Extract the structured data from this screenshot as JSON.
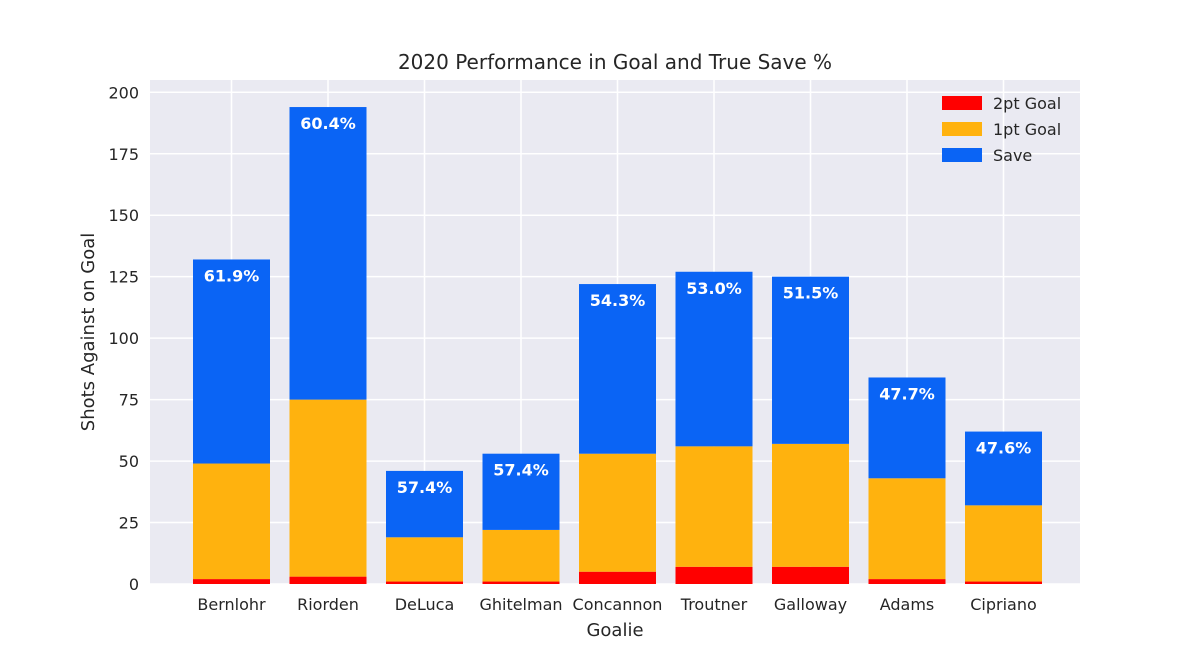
{
  "chart_data": {
    "type": "bar",
    "stacked": true,
    "title": "2020 Performance in Goal and True Save %",
    "xlabel": "Goalie",
    "ylabel": "Shots Against on Goal",
    "ylim": [
      0,
      205
    ],
    "yticks": [
      0,
      25,
      50,
      75,
      100,
      125,
      150,
      175,
      200
    ],
    "grid": true,
    "legend_position": "top-right",
    "categories": [
      "Bernlohr",
      "Riorden",
      "DeLuca",
      "Ghitelman",
      "Concannon",
      "Troutner",
      "Galloway",
      "Adams",
      "Cipriano"
    ],
    "highlighted_categories": [
      "Ghitelman",
      "Cipriano"
    ],
    "series": [
      {
        "name": "2pt Goal",
        "color": "#ff0000",
        "values": [
          2,
          3,
          1,
          1,
          5,
          7,
          7,
          2,
          1
        ]
      },
      {
        "name": "1pt Goal",
        "color": "#ffb20e",
        "values": [
          47,
          72,
          18,
          21,
          48,
          49,
          50,
          41,
          31
        ]
      },
      {
        "name": "Save",
        "color": "#0a64f5",
        "values": [
          83,
          119,
          27,
          31,
          69,
          71,
          68,
          41,
          30
        ]
      }
    ],
    "save_pct_labels": [
      "61.9%",
      "60.4%",
      "57.4%",
      "57.4%",
      "54.3%",
      "53.0%",
      "51.5%",
      "47.7%",
      "47.6%"
    ],
    "colors": {
      "background": "#eaeaf2",
      "grid": "#ffffff",
      "highlight_label": "#ff0000"
    }
  }
}
